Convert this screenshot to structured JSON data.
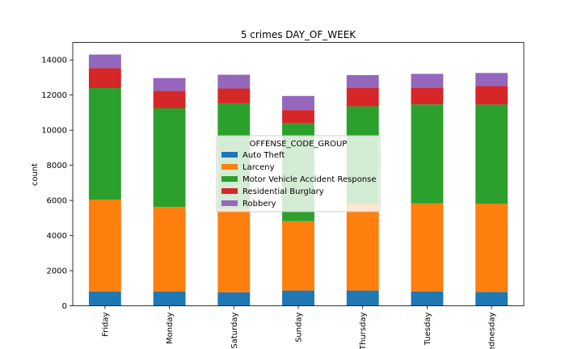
{
  "chart_data": {
    "type": "bar",
    "stacked": true,
    "title": "5 crimes DAY_OF_WEEK",
    "xlabel": "",
    "ylabel": "count",
    "ylim": [
      0,
      15000
    ],
    "yticks": [
      0,
      2000,
      4000,
      6000,
      8000,
      10000,
      12000,
      14000
    ],
    "grid": false,
    "legend_title": "OFFENSE_CODE_GROUP",
    "legend_position": "center",
    "categories": [
      "Friday",
      "Monday",
      "Saturday",
      "Sunday",
      "Thursday",
      "Tuesday",
      "Wednesday"
    ],
    "series": [
      {
        "name": "Auto Theft",
        "color": "#1f77b4",
        "values": [
          820,
          820,
          770,
          870,
          870,
          820,
          790
        ]
      },
      {
        "name": "Larceny",
        "color": "#ff7f0e",
        "values": [
          5230,
          4810,
          4760,
          3950,
          4930,
          5010,
          5030
        ]
      },
      {
        "name": "Motor Vehicle Accident Response",
        "color": "#2ca02c",
        "values": [
          6350,
          5620,
          6000,
          5570,
          5560,
          5640,
          5640
        ]
      },
      {
        "name": "Residential Burglary",
        "color": "#d62728",
        "values": [
          1130,
          1000,
          850,
          760,
          1040,
          950,
          1060
        ]
      },
      {
        "name": "Robbery",
        "color": "#9467bd",
        "values": [
          780,
          720,
          780,
          800,
          740,
          790,
          740
        ]
      }
    ]
  }
}
